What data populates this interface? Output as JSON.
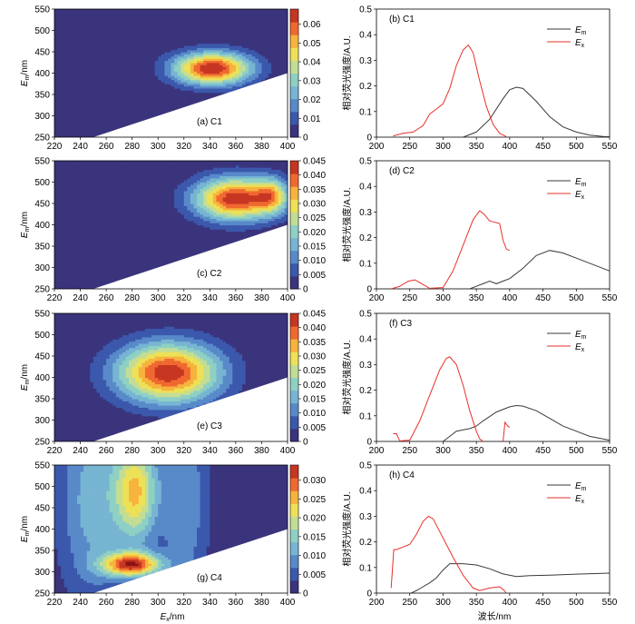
{
  "figure": {
    "em_axis_label": "nm",
    "ex_axis_label": "nm",
    "spectrum_xlabel": "波长/nm",
    "spectrum_ylabel": "相对荧光强度/A.U."
  },
  "chart_data": [
    {
      "type": "heatmap",
      "panel_label": "(a) C1",
      "x_ticks": [
        220,
        240,
        260,
        280,
        300,
        320,
        340,
        360,
        380,
        400
      ],
      "y_ticks": [
        250,
        300,
        350,
        400,
        450,
        500,
        550
      ],
      "xlim": [
        220,
        400
      ],
      "ylim": [
        250,
        550
      ],
      "colorbar_ticks": [
        "0",
        "0.01",
        "0.02",
        "0.03",
        "0.04",
        "0.05",
        "0.06"
      ],
      "colorbar_max": 0.068,
      "peaks": [
        {
          "ex": 342,
          "em": 412,
          "value": 0.068,
          "sx": 30,
          "sy": 38
        }
      ],
      "blank_below_diagonal": {
        "from": [
          250,
          250
        ],
        "to": [
          400,
          400
        ]
      }
    },
    {
      "type": "line",
      "panel_label": "(b) C1",
      "xlim": [
        200,
        550
      ],
      "ylim": [
        0,
        0.5
      ],
      "x_ticks": [
        200,
        250,
        300,
        350,
        400,
        450,
        500,
        550
      ],
      "y_ticks": [
        0,
        0.1,
        0.2,
        0.3,
        0.4,
        0.5
      ],
      "legend": "top-right",
      "series": [
        {
          "name": "Em",
          "color": "#3a3a3a",
          "x": [
            330,
            350,
            370,
            390,
            400,
            410,
            420,
            440,
            460,
            480,
            500,
            520,
            540,
            550
          ],
          "y": [
            0,
            0.02,
            0.07,
            0.15,
            0.185,
            0.195,
            0.19,
            0.14,
            0.08,
            0.04,
            0.02,
            0.008,
            0.003,
            0.002
          ]
        },
        {
          "name": "Ex",
          "color": "#e8302a",
          "x": [
            225,
            240,
            255,
            270,
            280,
            290,
            300,
            310,
            320,
            330,
            338,
            345,
            355,
            365,
            375,
            385,
            395
          ],
          "y": [
            0.005,
            0.015,
            0.02,
            0.045,
            0.09,
            0.11,
            0.13,
            0.19,
            0.28,
            0.34,
            0.36,
            0.33,
            0.22,
            0.12,
            0.05,
            0.015,
            0.002
          ]
        }
      ]
    },
    {
      "type": "heatmap",
      "panel_label": "(c) C2",
      "x_ticks": [
        220,
        240,
        260,
        280,
        300,
        320,
        340,
        360,
        380,
        400
      ],
      "y_ticks": [
        250,
        300,
        350,
        400,
        450,
        500,
        550
      ],
      "xlim": [
        220,
        400
      ],
      "ylim": [
        250,
        550
      ],
      "colorbar_ticks": [
        "0",
        "0.005",
        "0.010",
        "0.015",
        "0.020",
        "0.025",
        "0.030",
        "0.035",
        "0.040",
        "0.045"
      ],
      "colorbar_max": 0.045,
      "peaks": [
        {
          "ex": 360,
          "em": 462,
          "value": 0.044,
          "sx": 32,
          "sy": 50
        },
        {
          "ex": 388,
          "em": 470,
          "value": 0.02,
          "sx": 12,
          "sy": 40
        }
      ],
      "blank_below_diagonal": {
        "from": [
          250,
          250
        ],
        "to": [
          400,
          400
        ]
      }
    },
    {
      "type": "line",
      "panel_label": "(d) C2",
      "xlim": [
        200,
        550
      ],
      "ylim": [
        0,
        0.5
      ],
      "x_ticks": [
        200,
        250,
        300,
        350,
        400,
        450,
        500,
        550
      ],
      "y_ticks": [
        0,
        0.1,
        0.2,
        0.3,
        0.4,
        0.5
      ],
      "legend": "top-right",
      "series": [
        {
          "name": "Em",
          "color": "#3a3a3a",
          "x": [
            340,
            350,
            360,
            370,
            380,
            390,
            400,
            420,
            440,
            460,
            480,
            500,
            520,
            550
          ],
          "y": [
            0,
            0.01,
            0.02,
            0.03,
            0.02,
            0.03,
            0.04,
            0.08,
            0.13,
            0.15,
            0.14,
            0.12,
            0.1,
            0.07
          ]
        },
        {
          "name": "Ex",
          "color": "#e8302a",
          "x": [
            222,
            235,
            248,
            258,
            268,
            280,
            300,
            315,
            330,
            345,
            355,
            362,
            370,
            378,
            385,
            390,
            395,
            400
          ],
          "y": [
            0.0,
            0.01,
            0.03,
            0.035,
            0.02,
            0.002,
            0.005,
            0.07,
            0.17,
            0.27,
            0.305,
            0.29,
            0.265,
            0.26,
            0.255,
            0.19,
            0.155,
            0.15
          ]
        }
      ]
    },
    {
      "type": "heatmap",
      "panel_label": "(e) C3",
      "x_ticks": [
        220,
        240,
        260,
        280,
        300,
        320,
        340,
        360,
        380,
        400
      ],
      "y_ticks": [
        250,
        300,
        350,
        400,
        450,
        500,
        550
      ],
      "xlim": [
        220,
        400
      ],
      "ylim": [
        250,
        550
      ],
      "colorbar_ticks": [
        "0",
        "0.005",
        "0.010",
        "0.015",
        "0.020",
        "0.025",
        "0.030",
        "0.035",
        "0.040",
        "0.045"
      ],
      "colorbar_max": 0.045,
      "peaks": [
        {
          "ex": 308,
          "em": 412,
          "value": 0.044,
          "sx": 40,
          "sy": 70
        }
      ],
      "blank_below_diagonal": {
        "from": [
          250,
          250
        ],
        "to": [
          400,
          400
        ]
      }
    },
    {
      "type": "line",
      "panel_label": "(f) C3",
      "xlim": [
        200,
        550
      ],
      "ylim": [
        0,
        0.5
      ],
      "x_ticks": [
        200,
        250,
        300,
        350,
        400,
        450,
        500,
        550
      ],
      "y_ticks": [
        0,
        0.1,
        0.2,
        0.3,
        0.4,
        0.5
      ],
      "legend": "top-right",
      "series": [
        {
          "name": "Em",
          "color": "#3a3a3a",
          "x": [
            300,
            310,
            320,
            330,
            340,
            350,
            360,
            380,
            400,
            410,
            420,
            440,
            460,
            480,
            500,
            520,
            550
          ],
          "y": [
            0,
            0.02,
            0.04,
            0.045,
            0.05,
            0.06,
            0.08,
            0.115,
            0.135,
            0.14,
            0.138,
            0.12,
            0.09,
            0.06,
            0.04,
            0.02,
            0.005
          ]
        },
        {
          "name": "Ex",
          "color": "#e8302a",
          "x": [
            225,
            230,
            235,
            250,
            265,
            280,
            295,
            305,
            310,
            320,
            330,
            340,
            350,
            355,
            360
          ],
          "y": [
            0.03,
            0.03,
            0.002,
            0.005,
            0.08,
            0.18,
            0.28,
            0.325,
            0.33,
            0.3,
            0.22,
            0.12,
            0.04,
            0.01,
            0.0
          ]
        },
        {
          "name": "",
          "color": "#e8302a",
          "x": [
            390,
            393,
            397,
            400
          ],
          "y": [
            0.0,
            0.075,
            0.06,
            0.055
          ]
        }
      ]
    },
    {
      "type": "heatmap",
      "panel_label": "(g) C4",
      "x_ticks": [
        220,
        240,
        260,
        280,
        300,
        320,
        340,
        360,
        380,
        400
      ],
      "y_ticks": [
        250,
        300,
        350,
        400,
        450,
        500,
        550
      ],
      "xlim": [
        220,
        400
      ],
      "ylim": [
        250,
        550
      ],
      "colorbar_ticks": [
        "0",
        "0.005",
        "0.010",
        "0.015",
        "0.020",
        "0.025",
        "0.030"
      ],
      "colorbar_max": 0.034,
      "peaks": [
        {
          "ex": 280,
          "em": 318,
          "value": 0.03,
          "sx": 22,
          "sy": 28
        },
        {
          "ex": 283,
          "em": 490,
          "value": 0.022,
          "sx": 16,
          "sy": 120
        },
        {
          "ex": 250,
          "em": 470,
          "value": 0.012,
          "sx": 28,
          "sy": 250
        },
        {
          "ex": 320,
          "em": 470,
          "value": 0.01,
          "sx": 20,
          "sy": 250
        }
      ],
      "blank_below_diagonal": {
        "from": [
          250,
          250
        ],
        "to": [
          400,
          400
        ]
      }
    },
    {
      "type": "line",
      "panel_label": "(h) C4",
      "xlim": [
        200,
        550
      ],
      "ylim": [
        0,
        0.5
      ],
      "x_ticks": [
        200,
        250,
        300,
        350,
        400,
        450,
        500,
        550
      ],
      "y_ticks": [
        0,
        0.1,
        0.2,
        0.3,
        0.4,
        0.5
      ],
      "legend": "top-right",
      "series": [
        {
          "name": "Em",
          "color": "#3a3a3a",
          "x": [
            252,
            260,
            270,
            280,
            290,
            300,
            310,
            330,
            350,
            370,
            390,
            410,
            430,
            460,
            500,
            550
          ],
          "y": [
            0,
            0.01,
            0.025,
            0.04,
            0.06,
            0.09,
            0.115,
            0.115,
            0.11,
            0.095,
            0.075,
            0.065,
            0.068,
            0.07,
            0.074,
            0.078
          ]
        },
        {
          "name": "Ex",
          "color": "#e8302a",
          "x": [
            222,
            226,
            230,
            240,
            250,
            260,
            270,
            278,
            285,
            295,
            305,
            315,
            330,
            345,
            355,
            370,
            385,
            392,
            395
          ],
          "y": [
            0.02,
            0.17,
            0.17,
            0.18,
            0.19,
            0.23,
            0.28,
            0.3,
            0.29,
            0.24,
            0.19,
            0.14,
            0.07,
            0.02,
            0.01,
            0.02,
            0.025,
            0.01,
            0.0
          ]
        }
      ]
    }
  ]
}
